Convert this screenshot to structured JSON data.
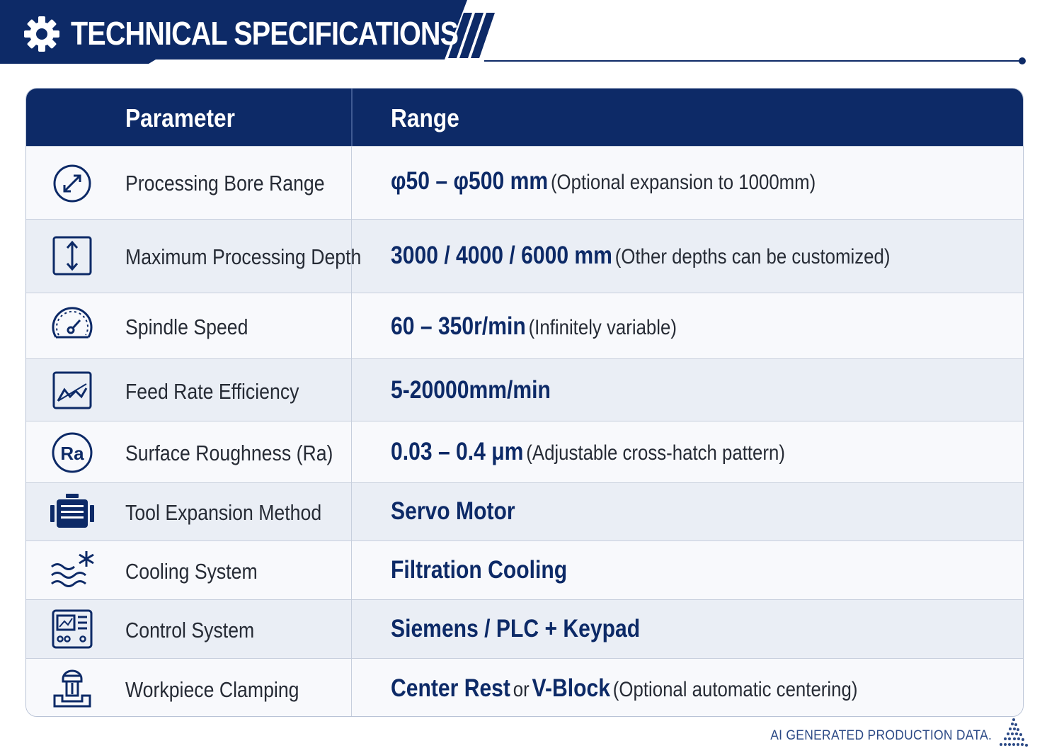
{
  "header": {
    "title": "TECHNICAL SPECIFICATIONS",
    "icon": "gear-icon"
  },
  "colors": {
    "navy": "#0d2a67",
    "row_alt": "#eaeef5",
    "row_plain": "#f8f9fc",
    "text": "#262b35"
  },
  "table": {
    "columns": [
      "Parameter",
      "Range"
    ],
    "rows": [
      {
        "icon": "diameter-icon",
        "parameter": "Processing Bore Range",
        "value": "φ50 – φ500 mm",
        "note": "(Optional expansion to 1000mm)"
      },
      {
        "icon": "depth-arrow-icon",
        "parameter": "Maximum Processing Depth",
        "value": "3000 / 4000 / 6000 mm",
        "note": "(Other depths can be customized)"
      },
      {
        "icon": "speedometer-icon",
        "parameter": "Spindle Speed",
        "value": "60 – 350r/min",
        "note": "(Infinitely variable)"
      },
      {
        "icon": "chart-trend-icon",
        "parameter": "Feed Rate Efficiency",
        "value": "5-20000mm/min",
        "note": ""
      },
      {
        "icon": "ra-badge-icon",
        "parameter": "Surface Roughness (Ra)",
        "value": "0.03 – 0.4 μm",
        "note": "(Adjustable cross-hatch pattern)"
      },
      {
        "icon": "servo-motor-icon",
        "parameter": "Tool Expansion Method",
        "value": "Servo Motor",
        "note": ""
      },
      {
        "icon": "coolant-waves-icon",
        "parameter": "Cooling System",
        "value": "Filtration Cooling",
        "note": ""
      },
      {
        "icon": "control-panel-icon",
        "parameter": "Control System",
        "value": "Siemens / PLC + Keypad",
        "note": ""
      },
      {
        "icon": "clamp-icon",
        "parameter": "Workpiece Clamping",
        "value": "Center Rest",
        "connector": "or",
        "value2": "V-Block",
        "note": "(Optional automatic centering)"
      }
    ]
  },
  "footer": {
    "text": "AI GENERATED PRODUCTION DATA."
  }
}
